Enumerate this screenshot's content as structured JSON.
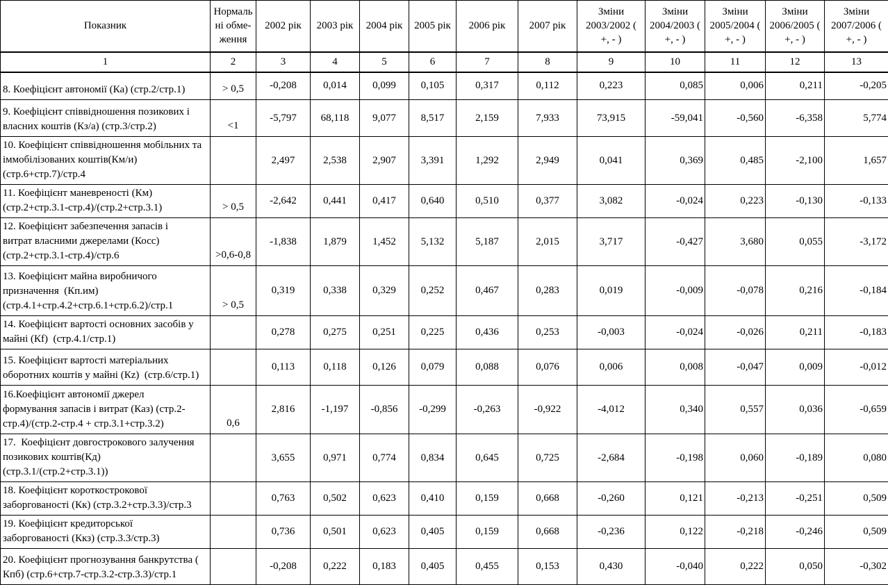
{
  "table": {
    "header": {
      "indicator": "Показник",
      "norm": "Нормаль\nні обме-\nження",
      "years": [
        "2002 рік",
        "2003 рік",
        "2004 рік",
        "2005 рік",
        "2006 рік",
        "2007 рік"
      ],
      "changes": [
        "Зміни\n2003/2002 (\n+, - )",
        "Зміни\n2004/2003 (\n+, - )",
        "Зміни\n2005/2004 (\n+, - )",
        "Зміни\n2006/2005 (\n+, - )",
        "Зміни\n2007/2006 (\n+, - )"
      ]
    },
    "column_numbers": [
      "1",
      "2",
      "3",
      "4",
      "5",
      "6",
      "7",
      "8",
      "9",
      "10",
      "11",
      "12",
      "13"
    ],
    "rows": [
      {
        "indicator": "8. Коефіцієнт автономії (Ка) (стр.2/стр.1)",
        "norm": "> 0,5",
        "values": [
          "-0,208",
          "0,014",
          "0,099",
          "0,105",
          "0,317",
          "0,112",
          "0,223",
          "0,085",
          "0,006",
          "0,211",
          "-0,205"
        ]
      },
      {
        "indicator": "9. Коефіцієнт співвідношення позикових і\nвласних коштів (Кз/а) (стр.3/стр.2)",
        "norm": "<1",
        "values": [
          "-5,797",
          "68,118",
          "9,077",
          "8,517",
          "2,159",
          "7,933",
          "73,915",
          "-59,041",
          "-0,560",
          "-6,358",
          "5,774"
        ]
      },
      {
        "indicator": "10. Коефіцієнт співвідношення мобільних та\nіммобілізованих коштів(Км/и)\n(стр.6+стр.7)/стр.4",
        "norm": "",
        "values": [
          "2,497",
          "2,538",
          "2,907",
          "3,391",
          "1,292",
          "2,949",
          "0,041",
          "0,369",
          "0,485",
          "-2,100",
          "1,657"
        ]
      },
      {
        "indicator": "11. Коефіцієнт маневреності (Км)\n(стр.2+стр.3.1-стр.4)/(стр.2+стр.3.1)",
        "norm": "> 0,5",
        "values": [
          "-2,642",
          "0,441",
          "0,417",
          "0,640",
          "0,510",
          "0,377",
          "3,082",
          "-0,024",
          "0,223",
          "-0,130",
          "-0,133"
        ]
      },
      {
        "indicator": "12. Коефіцієнт забезпечення запасів і\nвитрат власними джерелами (Косс)\n(стр.2+стр.3.1-стр.4)/стр.6",
        "norm": ">0,6-0,8",
        "values": [
          "-1,838",
          "1,879",
          "1,452",
          "5,132",
          "5,187",
          "2,015",
          "3,717",
          "-0,427",
          "3,680",
          "0,055",
          "-3,172"
        ]
      },
      {
        "indicator": "13. Коефіцієнт майна виробничого\nпризначення  (Кп.им)\n(стр.4.1+стр.4.2+стр.6.1+стр.6.2)/стр.1",
        "norm": "> 0,5",
        "values": [
          "0,319",
          "0,338",
          "0,329",
          "0,252",
          "0,467",
          "0,283",
          "0,019",
          "-0,009",
          "-0,078",
          "0,216",
          "-0,184"
        ]
      },
      {
        "indicator": "14. Коефіцієнт вартості основних засобів у\nмайні (Кf)  (стр.4.1/стр.1)",
        "norm": "",
        "values": [
          "0,278",
          "0,275",
          "0,251",
          "0,225",
          "0,436",
          "0,253",
          "-0,003",
          "-0,024",
          "-0,026",
          "0,211",
          "-0,183"
        ]
      },
      {
        "indicator": "15. Коефіцієнт вартості матеріальних\nоборотних коштів у майні (Кz)  (стр.6/стр.1)",
        "norm": "",
        "values": [
          "0,113",
          "0,118",
          "0,126",
          "0,079",
          "0,088",
          "0,076",
          "0,006",
          "0,008",
          "-0,047",
          "0,009",
          "-0,012"
        ]
      },
      {
        "indicator": "16.Коефіцієнт автономії джерел\nформування запасів і витрат (Каз) (стр.2-\nстр.4)/(стр.2-стр.4 + стр.3.1+стр.3.2)",
        "norm": "0,6",
        "values": [
          "2,816",
          "-1,197",
          "-0,856",
          "-0,299",
          "-0,263",
          "-0,922",
          "-4,012",
          "0,340",
          "0,557",
          "0,036",
          "-0,659"
        ]
      },
      {
        "indicator": "17.  Коефіцієнт довгострокового залучення\nпозикових коштів(Кд)\n(стр.3.1/(стр.2+стр.3.1))",
        "norm": "",
        "values": [
          "3,655",
          "0,971",
          "0,774",
          "0,834",
          "0,645",
          "0,725",
          "-2,684",
          "-0,198",
          "0,060",
          "-0,189",
          "0,080"
        ]
      },
      {
        "indicator": "18. Коефіцієнт короткострокової\nзаборгованості (Кк) (стр.3.2+стр.3.3)/стр.3",
        "norm": "",
        "values": [
          "0,763",
          "0,502",
          "0,623",
          "0,410",
          "0,159",
          "0,668",
          "-0,260",
          "0,121",
          "-0,213",
          "-0,251",
          "0,509"
        ]
      },
      {
        "indicator": "19. Коефіцієнт кредиторської\nзаборгованості (Ккз) (стр.3.3/стр.3)",
        "norm": "",
        "values": [
          "0,736",
          "0,501",
          "0,623",
          "0,405",
          "0,159",
          "0,668",
          "-0,236",
          "0,122",
          "-0,218",
          "-0,246",
          "0,509"
        ]
      },
      {
        "indicator": "20. Коефіцієнт прогнозування банкрутства (\nКпб) (стр.6+стр.7-стр.3.2-стр.3.3)/стр.1",
        "norm": "",
        "values": [
          "-0,208",
          "0,222",
          "0,183",
          "0,405",
          "0,455",
          "0,153",
          "0,430",
          "-0,040",
          "0,222",
          "0,050",
          "-0,302"
        ]
      }
    ]
  }
}
